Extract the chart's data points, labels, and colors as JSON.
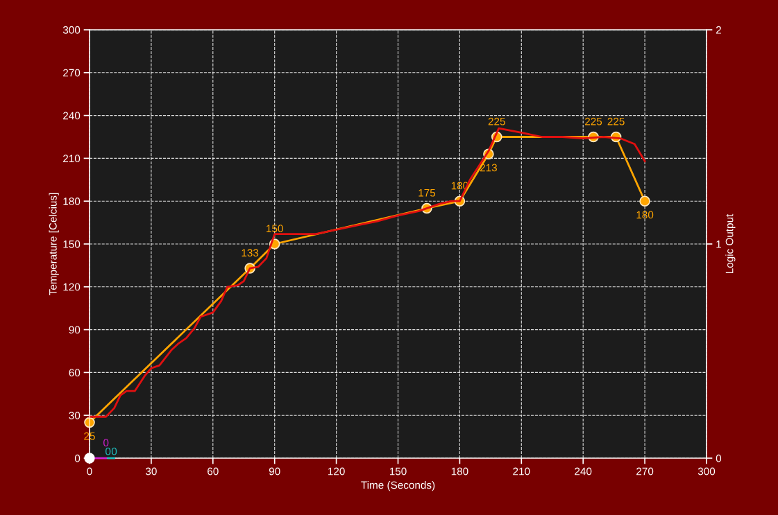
{
  "chart_data": {
    "type": "line",
    "xlabel": "Time (Seconds)",
    "ylabel": "Temperature [Celcius]",
    "y2label": "Logic Output",
    "xlim": [
      0,
      300
    ],
    "xticks": [
      0,
      30,
      60,
      90,
      120,
      150,
      180,
      210,
      240,
      270,
      300
    ],
    "ylim": [
      0,
      300
    ],
    "yticks": [
      0,
      30,
      60,
      90,
      120,
      150,
      180,
      210,
      240,
      270,
      300
    ],
    "y2lim": [
      0,
      2
    ],
    "y2ticks": [
      0,
      1,
      2
    ],
    "grid": true,
    "line_style": "solid",
    "series": [
      {
        "color": "#ffa500",
        "marker": "circle",
        "x": [
          0,
          78,
          90,
          164,
          180,
          194,
          198,
          245,
          256,
          270
        ],
        "values": [
          25,
          133,
          150,
          175,
          180,
          213,
          225,
          225,
          225,
          180
        ],
        "value_labels": [
          "25",
          "133",
          "150",
          "175",
          "180",
          "213",
          "225",
          "225",
          "225",
          "180"
        ]
      },
      {
        "color": "#e01010",
        "marker": "none",
        "x": [
          0,
          8,
          12,
          15,
          18,
          22,
          27,
          30,
          34,
          40,
          43,
          47,
          51,
          54,
          60,
          64,
          67,
          72,
          75,
          78,
          82,
          86,
          90,
          110,
          120,
          130,
          140,
          150,
          160,
          170,
          176,
          180,
          185,
          194,
          199,
          210,
          220,
          230,
          240,
          250,
          258,
          265,
          270
        ],
        "values": [
          29,
          29,
          35,
          44,
          47,
          47,
          58,
          63,
          65,
          76,
          80,
          84,
          91,
          99,
          102,
          110,
          120,
          121,
          124,
          133,
          134,
          140,
          157,
          157,
          160,
          163,
          166,
          170,
          173,
          178,
          180,
          180,
          195,
          215,
          231,
          228,
          225,
          225,
          224,
          225,
          224,
          220,
          208
        ]
      },
      {
        "type": "line",
        "color": "#d020d0",
        "marker": "none",
        "axis": "y2",
        "x": [
          2,
          8
        ],
        "values": [
          0,
          0
        ],
        "value_labels": [
          null,
          "0"
        ]
      },
      {
        "type": "line",
        "color": "#20c0c0",
        "marker": "none",
        "axis": "y2",
        "x": [
          9,
          12
        ],
        "values": [
          0,
          0
        ],
        "value_labels": [
          "0",
          "0"
        ]
      },
      {
        "type": "scatter",
        "color": "#ffffff",
        "marker": "circle",
        "axis": "y2",
        "x": [
          0
        ],
        "values": [
          0
        ]
      }
    ]
  }
}
